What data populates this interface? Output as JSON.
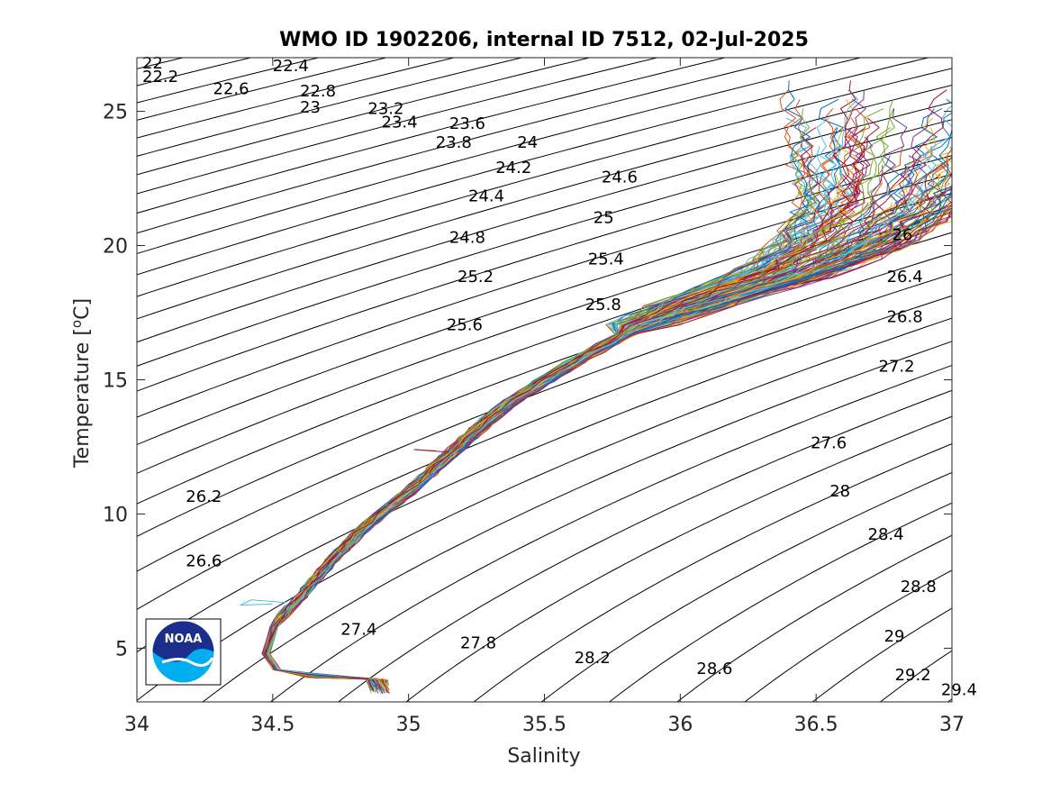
{
  "chart_data": {
    "type": "line",
    "title": "WMO ID 1902206, internal ID 7512, 02-Jul-2025",
    "xlabel": "Salinity",
    "ylabel": "Temperature [",
    "ylabel_sup": "o",
    "ylabel_tail": "C]",
    "xlim": [
      34,
      37
    ],
    "ylim": [
      3,
      27
    ],
    "x_ticks": [
      34,
      34.5,
      35,
      35.5,
      36,
      36.5,
      37
    ],
    "x_tick_labels": [
      "34",
      "34.5",
      "35",
      "35.5",
      "36",
      "36.5",
      "37"
    ],
    "y_ticks": [
      5,
      10,
      15,
      20,
      25
    ],
    "y_tick_labels": [
      "5",
      "10",
      "15",
      "20",
      "25"
    ],
    "grid": false,
    "legend": "none",
    "logo": "NOAA",
    "density_contours": {
      "color": "#000000",
      "levels": [
        22,
        22.2,
        22.4,
        22.6,
        22.8,
        23,
        23.2,
        23.4,
        23.6,
        23.8,
        24,
        24.2,
        24.4,
        24.6,
        24.8,
        25,
        25.2,
        25.4,
        25.6,
        25.8,
        26,
        26.2,
        26.4,
        26.6,
        26.8,
        27,
        27.2,
        27.4,
        27.6,
        27.8,
        28,
        28.2,
        28.4,
        28.6,
        28.8,
        29,
        29.2,
        29.4
      ],
      "labels": [
        {
          "text": "22",
          "s": 34.02,
          "t": 26.8
        },
        {
          "text": "22.2",
          "s": 34.02,
          "t": 26.3
        },
        {
          "text": "22.4",
          "s": 34.5,
          "t": 26.7
        },
        {
          "text": "22.6",
          "s": 34.28,
          "t": 25.85
        },
        {
          "text": "22.8",
          "s": 34.6,
          "t": 25.75
        },
        {
          "text": "23",
          "s": 34.6,
          "t": 25.15
        },
        {
          "text": "23.2",
          "s": 34.85,
          "t": 25.1
        },
        {
          "text": "23.4",
          "s": 34.9,
          "t": 24.6
        },
        {
          "text": "23.6",
          "s": 35.15,
          "t": 24.55
        },
        {
          "text": "23.8",
          "s": 35.1,
          "t": 23.85
        },
        {
          "text": "24",
          "s": 35.4,
          "t": 23.85
        },
        {
          "text": "24.2",
          "s": 35.32,
          "t": 22.9
        },
        {
          "text": "24.4",
          "s": 35.22,
          "t": 21.85
        },
        {
          "text": "24.6",
          "s": 35.71,
          "t": 22.55
        },
        {
          "text": "24.8",
          "s": 35.15,
          "t": 20.3
        },
        {
          "text": "25",
          "s": 35.68,
          "t": 21.05
        },
        {
          "text": "25.2",
          "s": 35.18,
          "t": 18.85
        },
        {
          "text": "25.4",
          "s": 35.66,
          "t": 19.5
        },
        {
          "text": "25.6",
          "s": 35.14,
          "t": 17.05
        },
        {
          "text": "25.8",
          "s": 35.65,
          "t": 17.8
        },
        {
          "text": "26",
          "s": 36.78,
          "t": 20.4
        },
        {
          "text": "26.2",
          "s": 34.18,
          "t": 10.65
        },
        {
          "text": "26.4",
          "s": 36.76,
          "t": 18.85
        },
        {
          "text": "26.6",
          "s": 34.18,
          "t": 8.25
        },
        {
          "text": "26.8",
          "s": 36.76,
          "t": 17.35
        },
        {
          "text": "27.2",
          "s": 36.73,
          "t": 15.5
        },
        {
          "text": "27.4",
          "s": 34.75,
          "t": 5.7
        },
        {
          "text": "27.6",
          "s": 36.48,
          "t": 12.65
        },
        {
          "text": "27.8",
          "s": 35.19,
          "t": 5.2
        },
        {
          "text": "28",
          "s": 36.55,
          "t": 10.85
        },
        {
          "text": "28.2",
          "s": 35.61,
          "t": 4.65
        },
        {
          "text": "28.4",
          "s": 36.69,
          "t": 9.25
        },
        {
          "text": "28.6",
          "s": 36.06,
          "t": 4.25
        },
        {
          "text": "28.8",
          "s": 36.81,
          "t": 7.3
        },
        {
          "text": "29",
          "s": 36.75,
          "t": 5.45
        },
        {
          "text": "29.2",
          "s": 36.79,
          "t": 4.0
        },
        {
          "text": "29.4",
          "s": 36.96,
          "t": 3.45
        }
      ]
    },
    "series": [
      {
        "id": "profiles-mean-envelope",
        "color": "#0072bd",
        "points": [
          [
            34.9,
            3.3
          ],
          [
            34.88,
            3.8
          ],
          [
            34.6,
            3.95
          ],
          [
            34.5,
            4.2
          ],
          [
            34.47,
            4.8
          ],
          [
            34.5,
            5.8
          ],
          [
            34.6,
            6.9
          ],
          [
            34.72,
            8.3
          ],
          [
            34.85,
            9.6
          ],
          [
            35.0,
            10.8
          ],
          [
            35.15,
            12.2
          ],
          [
            35.35,
            14.0
          ],
          [
            35.6,
            15.6
          ],
          [
            35.85,
            17.0
          ],
          [
            36.1,
            18.0
          ],
          [
            36.4,
            19.0
          ],
          [
            36.6,
            20.1
          ],
          [
            36.75,
            21.5
          ],
          [
            36.8,
            23.0
          ],
          [
            36.82,
            24.5
          ],
          [
            36.85,
            26.2
          ]
        ]
      }
    ],
    "series_colors": [
      "#0072bd",
      "#d95319",
      "#edb120",
      "#7e2f8e",
      "#77ac30",
      "#4dbeee",
      "#a2142f"
    ],
    "profile_count": 140,
    "annotated_outliers": [
      {
        "color": "#4dbeee",
        "points": [
          [
            34.55,
            6.7
          ],
          [
            34.42,
            6.8
          ],
          [
            34.38,
            6.6
          ],
          [
            34.5,
            6.65
          ]
        ]
      },
      {
        "color": "#a2142f",
        "points": [
          [
            35.1,
            12.35
          ],
          [
            35.02,
            12.4
          ],
          [
            35.15,
            12.3
          ]
        ]
      }
    ]
  }
}
